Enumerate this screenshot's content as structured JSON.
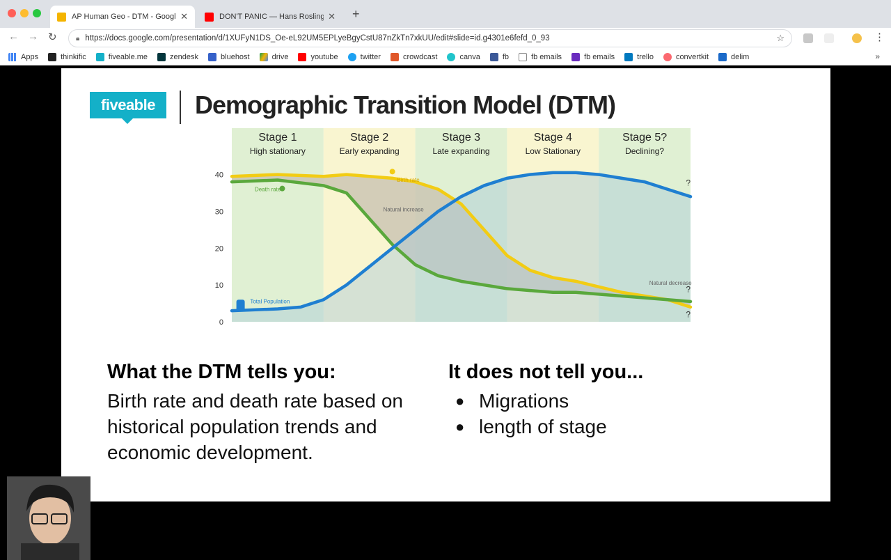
{
  "browser": {
    "tabs": [
      {
        "title": "AP Human Geo - DTM - Googl",
        "active": true,
        "icon": "slides-icon"
      },
      {
        "title": "DON'T PANIC — Hans Rosling",
        "active": false,
        "icon": "youtube-icon"
      }
    ],
    "url": "https://docs.google.com/presentation/d/1XUFyN1DS_Oe-eL92UM5EPLyeBgyCstU87nZkTn7xkUU/edit#slide=id.g4301e6fefd_0_93",
    "bookmarks": [
      "Apps",
      "thinkific",
      "fiveable.me",
      "zendesk",
      "bluehost",
      "drive",
      "youtube",
      "twitter",
      "crowdcast",
      "canva",
      "fb",
      "fb emails",
      "fb emails",
      "trello",
      "convertkit",
      "delim"
    ]
  },
  "slide": {
    "logo_text": "fiveable",
    "title": "Demographic Transition Model (DTM)",
    "left": {
      "heading": "What the DTM tells you:",
      "body": "Birth rate and death rate based on historical population trends and economic development."
    },
    "right": {
      "heading": "It does not tell you...",
      "bullets": [
        "Migrations",
        "length of stage"
      ]
    }
  },
  "chart_data": {
    "type": "line",
    "stages": [
      {
        "name": "Stage 1",
        "sub": "High stationary"
      },
      {
        "name": "Stage 2",
        "sub": "Early expanding"
      },
      {
        "name": "Stage 3",
        "sub": "Late expanding"
      },
      {
        "name": "Stage 4",
        "sub": "Low Stationary"
      },
      {
        "name": "Stage 5?",
        "sub": "Declining?"
      }
    ],
    "y_ticks": [
      0,
      10,
      20,
      30,
      40
    ],
    "ylim": [
      0,
      42
    ],
    "xlim": [
      0,
      100
    ],
    "series": [
      {
        "name": "Birth rate",
        "color": "#f2cc14",
        "x": [
          0,
          10,
          20,
          25,
          30,
          35,
          40,
          45,
          50,
          55,
          60,
          65,
          70,
          75,
          80,
          85,
          90,
          95,
          100
        ],
        "y": [
          39.5,
          40,
          39.5,
          40,
          39.5,
          39,
          38,
          36,
          32,
          25,
          18,
          14,
          12,
          11,
          9.5,
          8,
          7,
          6,
          4
        ]
      },
      {
        "name": "Death rate",
        "color": "#5aa83c",
        "x": [
          0,
          10,
          20,
          25,
          30,
          35,
          40,
          45,
          50,
          55,
          60,
          65,
          70,
          75,
          80,
          85,
          90,
          95,
          100
        ],
        "y": [
          38,
          38.5,
          37,
          35,
          28,
          21,
          15.5,
          12.5,
          11,
          10,
          9,
          8.5,
          8,
          8,
          7.5,
          7,
          6.5,
          6,
          5.5
        ]
      },
      {
        "name": "Total Population",
        "color": "#1f7fd1",
        "x": [
          0,
          10,
          15,
          20,
          25,
          30,
          35,
          40,
          45,
          50,
          55,
          60,
          65,
          70,
          75,
          80,
          85,
          90,
          95,
          100
        ],
        "y": [
          3,
          3.5,
          4,
          6,
          10,
          15,
          20,
          25,
          30,
          34,
          37,
          39,
          40,
          40.5,
          40.5,
          40,
          39,
          38,
          36,
          34
        ]
      }
    ],
    "annotations": [
      "Birth rate",
      "Death rate",
      "Natural increase",
      "Total Population",
      "Natural decrease",
      "?",
      "?",
      "?"
    ],
    "colors": {
      "stage_green": "#d6ebc4",
      "stage_yellow": "#f7f2c0",
      "increase_fill": "#c9c3b1",
      "decrease_fill": "#a9c9d9"
    }
  }
}
